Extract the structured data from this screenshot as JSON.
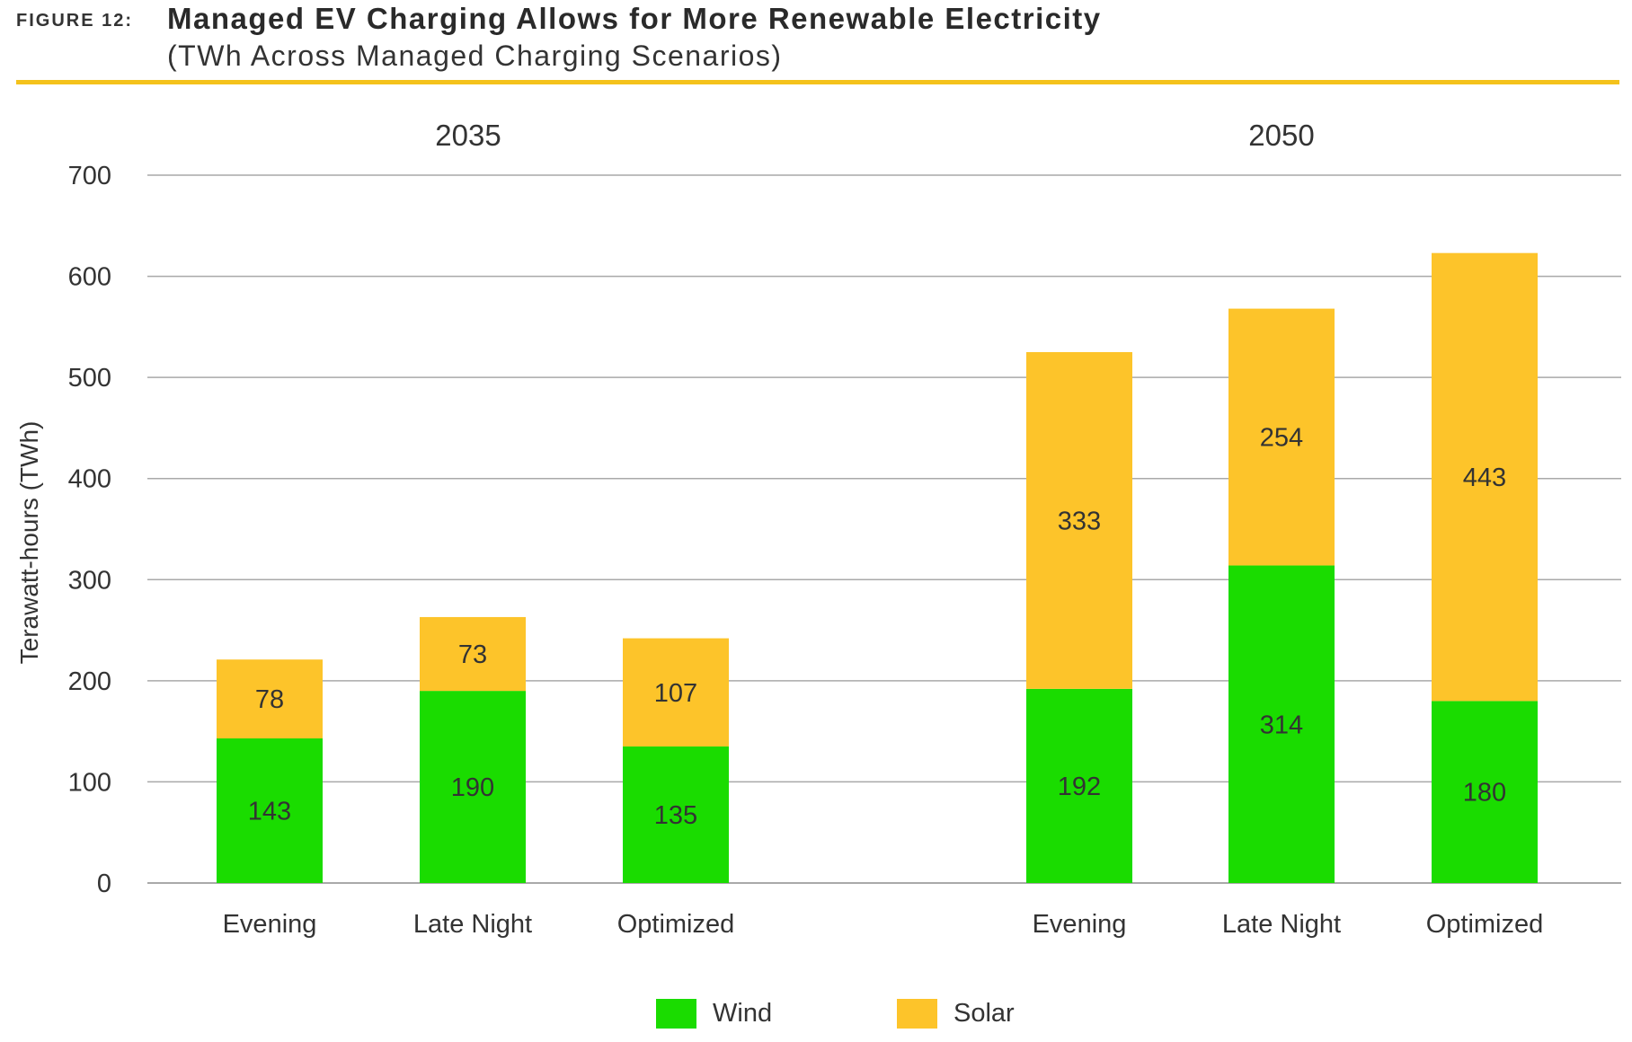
{
  "header": {
    "figure_label": "FIGURE 12:",
    "title": "Managed EV Charging Allows for More Renewable Electricity",
    "subtitle": "(TWh Across Managed Charging Scenarios)"
  },
  "colors": {
    "wind": "#1adc00",
    "solar": "#fdc42a",
    "grid": "#a9a9a9",
    "rule": "#f4c21c"
  },
  "chart_data": {
    "type": "bar",
    "stacked": true,
    "ylabel": "Terawatt-hours (TWh)",
    "ylim": [
      0,
      700
    ],
    "yticks": [
      0,
      100,
      200,
      300,
      400,
      500,
      600,
      700
    ],
    "groups": [
      {
        "label": "2035",
        "categories": [
          "Evening",
          "Late Night",
          "Optimized"
        ]
      },
      {
        "label": "2050",
        "categories": [
          "Evening",
          "Late Night",
          "Optimized"
        ]
      }
    ],
    "series": [
      {
        "name": "Wind",
        "values": [
          143,
          190,
          135,
          192,
          314,
          180
        ]
      },
      {
        "name": "Solar",
        "values": [
          78,
          73,
          107,
          333,
          254,
          443
        ]
      }
    ],
    "legend": [
      "Wind",
      "Solar"
    ]
  }
}
